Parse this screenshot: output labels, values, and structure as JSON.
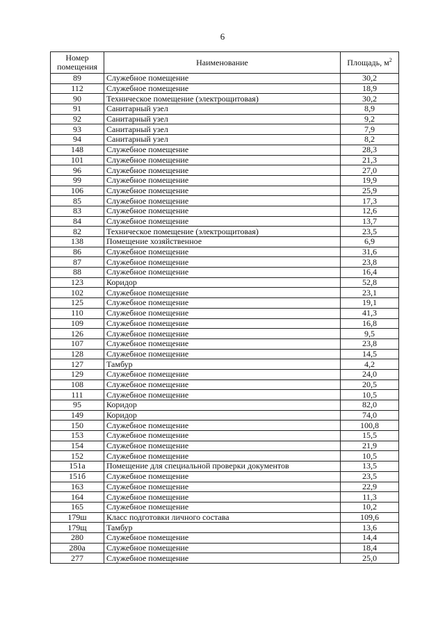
{
  "page_number": "6",
  "table": {
    "headers": {
      "number": "Номер помещения",
      "name": "Наименование",
      "area": "Площадь, м",
      "area_sup": "2"
    },
    "rows": [
      [
        "89",
        "Служебное помещение",
        "30,2"
      ],
      [
        "112",
        "Служебное помещение",
        "18,9"
      ],
      [
        "90",
        "Техническое помещение (электрощитовая)",
        "30,2"
      ],
      [
        "91",
        "Санитарный узел",
        "8,9"
      ],
      [
        "92",
        "Санитарный узел",
        "9,2"
      ],
      [
        "93",
        "Санитарный узел",
        "7,9"
      ],
      [
        "94",
        "Санитарный узел",
        "8,2"
      ],
      [
        "148",
        "Служебное помещение",
        "28,3"
      ],
      [
        "101",
        "Служебное помещение",
        "21,3"
      ],
      [
        "96",
        "Служебное помещение",
        "27,0"
      ],
      [
        "99",
        "Служебное помещение",
        "19,9"
      ],
      [
        "106",
        "Служебное помещение",
        "25,9"
      ],
      [
        "85",
        "Служебное помещение",
        "17,3"
      ],
      [
        "83",
        "Служебное помещение",
        "12,6"
      ],
      [
        "84",
        "Служебное помещение",
        "13,7"
      ],
      [
        "82",
        "Техническое помещение (электрощитовая)",
        "23,5"
      ],
      [
        "138",
        "Помещение хозяйственное",
        "6,9"
      ],
      [
        "86",
        "Служебное помещение",
        "31,6"
      ],
      [
        "87",
        "Служебное помещение",
        "23,8"
      ],
      [
        "88",
        "Служебное помещение",
        "16,4"
      ],
      [
        "123",
        "Коридор",
        "52,8"
      ],
      [
        "102",
        "Служебное помещение",
        "23,1"
      ],
      [
        "125",
        "Служебное помещение",
        "19,1"
      ],
      [
        "110",
        "Служебное помещение",
        "41,3"
      ],
      [
        "109",
        "Служебное помещение",
        "16,8"
      ],
      [
        "126",
        "Служебное помещение",
        "9,5"
      ],
      [
        "107",
        "Служебное помещение",
        "23,8"
      ],
      [
        "128",
        "Служебное помещение",
        "14,5"
      ],
      [
        "127",
        "Тамбур",
        "4,2"
      ],
      [
        "129",
        "Служебное помещение",
        "24,0"
      ],
      [
        "108",
        "Служебное помещение",
        "20,5"
      ],
      [
        "111",
        "Служебное помещение",
        "10,5"
      ],
      [
        "95",
        "Коридор",
        "82,0"
      ],
      [
        "149",
        "Коридор",
        "74,0"
      ],
      [
        "150",
        "Служебное помещение",
        "100,8"
      ],
      [
        "153",
        "Служебное помещение",
        "15,5"
      ],
      [
        "154",
        "Служебное помещение",
        "21,9"
      ],
      [
        "152",
        "Служебное помещение",
        "10,5"
      ],
      [
        "151а",
        "Помещение для специальной проверки документов",
        "13,5"
      ],
      [
        "151б",
        "Служебное помещение",
        "23,5"
      ],
      [
        "163",
        "Служебное помещение",
        "22,9"
      ],
      [
        "164",
        "Служебное помещение",
        "11,3"
      ],
      [
        "165",
        "Служебное помещение",
        "10,2"
      ],
      [
        "179ш",
        "Класс подготовки личного состава",
        "109,6"
      ],
      [
        "179щ",
        "Тамбур",
        "13,6"
      ],
      [
        "280",
        "Служебное помещение",
        "14,4"
      ],
      [
        "280а",
        "Служебное помещение",
        "18,4"
      ],
      [
        "277",
        "Служебное помещение",
        "25,0"
      ]
    ]
  }
}
